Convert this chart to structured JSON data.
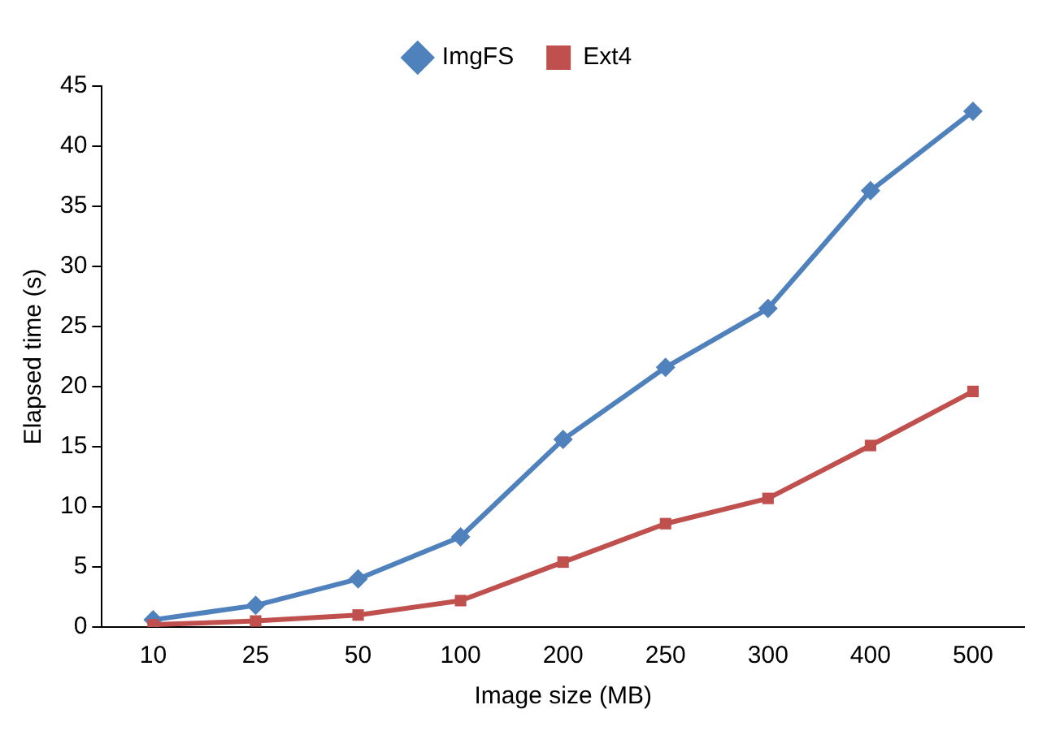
{
  "chart_data": {
    "type": "line",
    "xlabel": "Image size (MB)",
    "ylabel": "Elapsed time (s)",
    "categories": [
      "10",
      "25",
      "50",
      "100",
      "200",
      "250",
      "300",
      "400",
      "500"
    ],
    "series": [
      {
        "name": "ImgFS",
        "color": "#4f81bd",
        "marker": "diamond",
        "values": [
          0.6,
          1.8,
          4.0,
          7.5,
          15.6,
          21.6,
          26.5,
          36.3,
          42.9
        ]
      },
      {
        "name": "Ext4",
        "color": "#c0504d",
        "marker": "square",
        "values": [
          0.2,
          0.5,
          1.0,
          2.2,
          5.4,
          8.6,
          10.7,
          15.1,
          19.6
        ]
      }
    ],
    "ylim": [
      0,
      45
    ],
    "yticks": [
      0,
      5,
      10,
      15,
      20,
      25,
      30,
      35,
      40,
      45
    ],
    "grid": false,
    "legend": "top",
    "line_style": "solid"
  }
}
